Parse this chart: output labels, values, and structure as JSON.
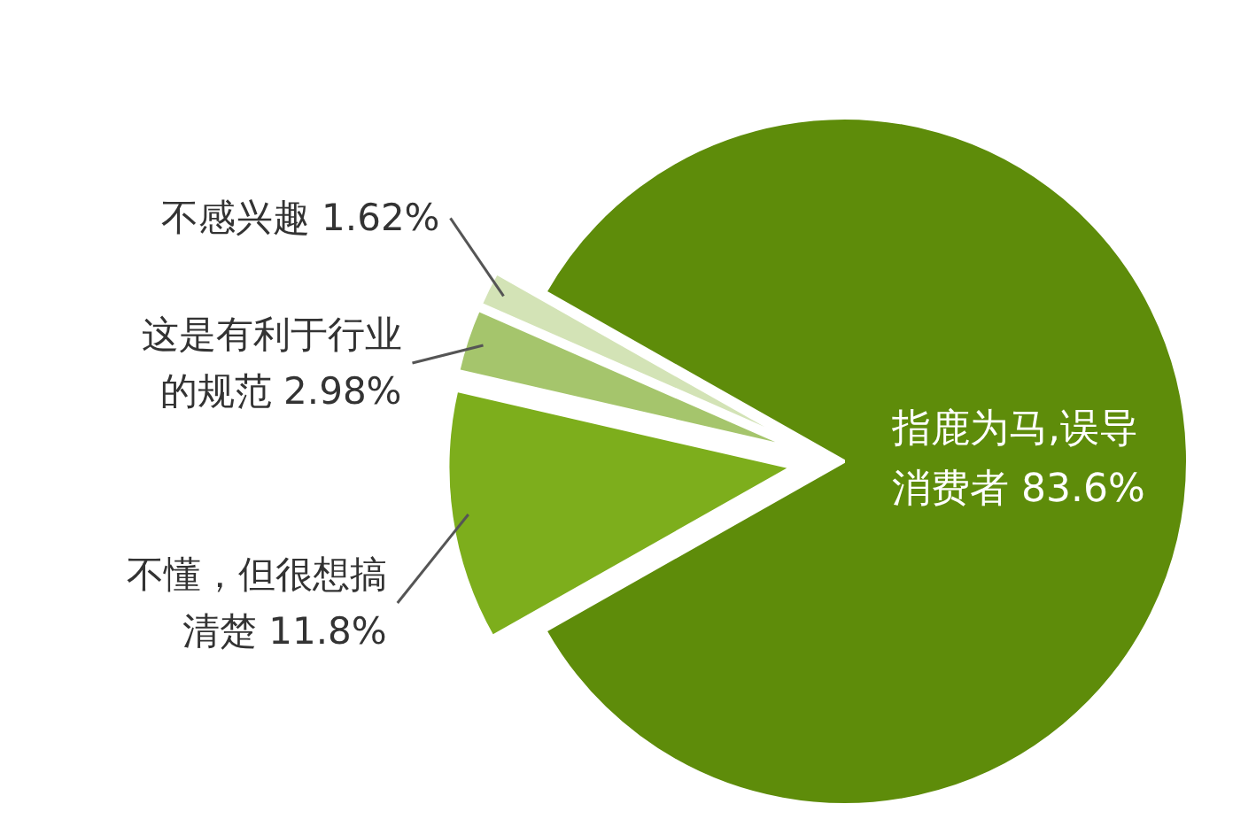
{
  "chart_data": {
    "type": "pie",
    "categories": [
      "指鹿为马,误导消费者",
      "不感兴趣",
      "这是有利于行业的规范",
      "不懂，但很想搞清楚"
    ],
    "values": [
      83.6,
      1.62,
      2.98,
      11.8
    ],
    "colors": [
      "#5e8c0a",
      "#d3e3b6",
      "#a5c56c",
      "#7dae1c"
    ],
    "value_labels": [
      "83.6%",
      "1.62%",
      "2.98%",
      "11.8%"
    ]
  }
}
